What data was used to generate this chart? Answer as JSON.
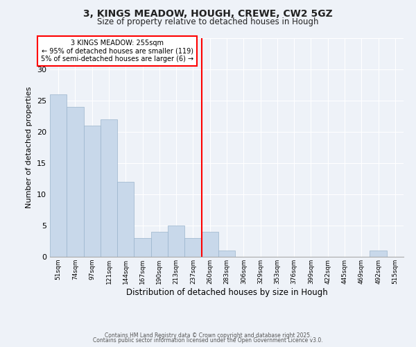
{
  "title": "3, KINGS MEADOW, HOUGH, CREWE, CW2 5GZ",
  "subtitle": "Size of property relative to detached houses in Hough",
  "xlabel": "Distribution of detached houses by size in Hough",
  "ylabel": "Number of detached properties",
  "bar_color": "#c8d8ea",
  "bar_edge_color": "#9ab4cc",
  "background_color": "#eef2f8",
  "grid_color": "#ffffff",
  "categories": [
    "51sqm",
    "74sqm",
    "97sqm",
    "121sqm",
    "144sqm",
    "167sqm",
    "190sqm",
    "213sqm",
    "237sqm",
    "260sqm",
    "283sqm",
    "306sqm",
    "329sqm",
    "353sqm",
    "376sqm",
    "399sqm",
    "422sqm",
    "445sqm",
    "469sqm",
    "492sqm",
    "515sqm"
  ],
  "values": [
    26,
    24,
    21,
    22,
    12,
    3,
    4,
    5,
    3,
    4,
    1,
    0,
    0,
    0,
    0,
    0,
    0,
    0,
    0,
    1,
    0
  ],
  "vline_color": "red",
  "annotation_title": "3 KINGS MEADOW: 255sqm",
  "annotation_line1": "← 95% of detached houses are smaller (119)",
  "annotation_line2": "5% of semi-detached houses are larger (6) →",
  "annotation_box_color": "#ffffff",
  "annotation_box_edge": "red",
  "ylim": [
    0,
    35
  ],
  "yticks": [
    0,
    5,
    10,
    15,
    20,
    25,
    30,
    35
  ],
  "footnote1": "Contains HM Land Registry data © Crown copyright and database right 2025.",
  "footnote2": "Contains public sector information licensed under the Open Government Licence v3.0."
}
